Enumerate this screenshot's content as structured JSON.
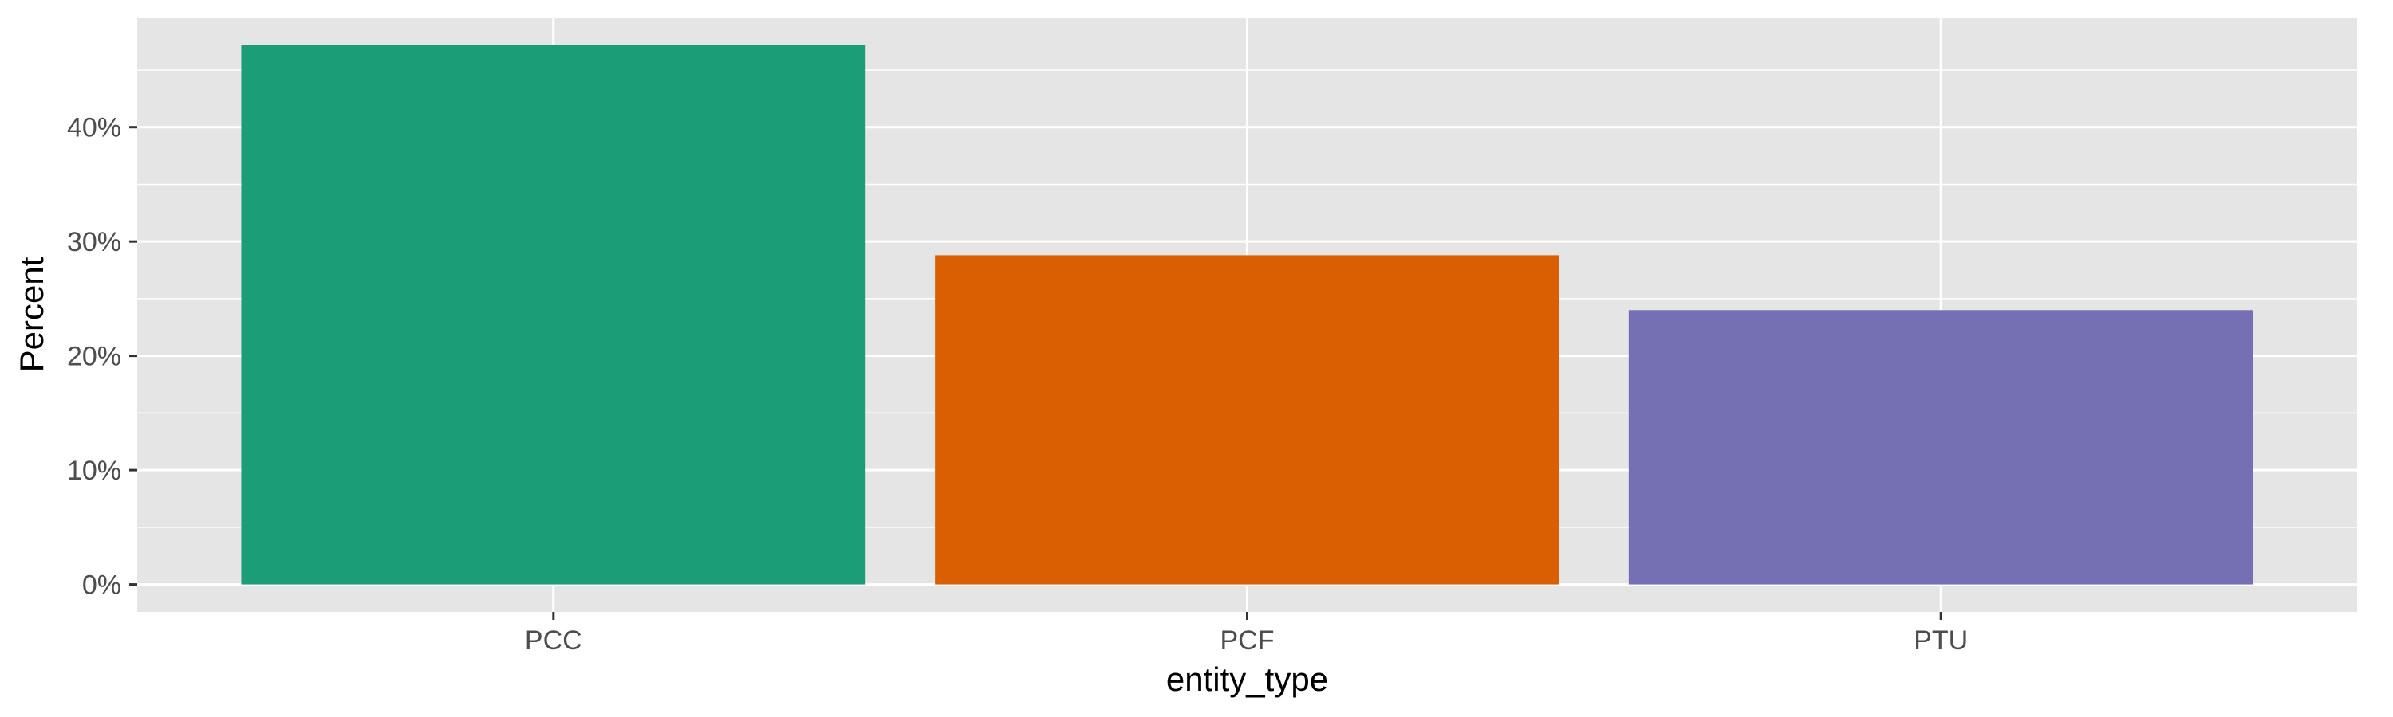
{
  "chart_data": {
    "type": "bar",
    "categories": [
      "PCC",
      "PCF",
      "PTU"
    ],
    "values": [
      47.2,
      28.8,
      24.0
    ],
    "colors": [
      "#1B9E77",
      "#D95F02",
      "#7570B3"
    ],
    "title": "",
    "xlabel": "entity_type",
    "ylabel": "Percent",
    "ylim": [
      -2.4,
      49.6
    ],
    "y_ticks": [
      0,
      10,
      20,
      30,
      40
    ],
    "y_tick_labels": [
      "0%",
      "10%",
      "20%",
      "30%",
      "40%"
    ],
    "panel_background": "#E5E5E5",
    "grid": true,
    "legend": "none"
  }
}
